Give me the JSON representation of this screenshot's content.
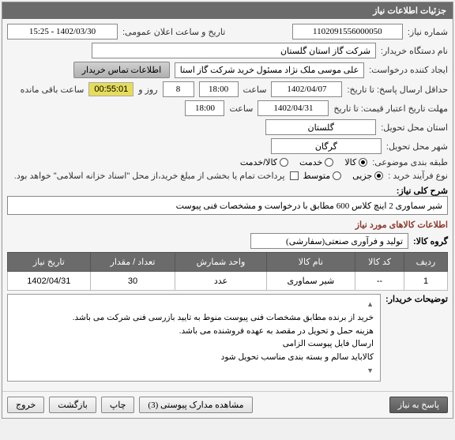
{
  "panel": {
    "title": "جزئیات اطلاعات نیاز"
  },
  "fields": {
    "req_no_label": "شماره نیاز:",
    "req_no": "1102091556000050",
    "announce_label": "تاریخ و ساعت اعلان عمومی:",
    "announce_dt": "1402/03/30 - 15:25",
    "buyer_org_label": "نام دستگاه خریدار:",
    "buyer_org": "شرکت گاز استان گلستان",
    "requester_label": "ایجاد کننده درخواست:",
    "requester": "علی موسی ملک نژاد مسئول خرید شرکت گاز استان گلستان",
    "contact_btn": "اطلاعات تماس خریدار",
    "reply_deadline_label": "حداقل ارسال پاسخ: تا تاریخ:",
    "reply_date": "1402/04/07",
    "time_lbl": "ساعت",
    "reply_time": "18:00",
    "and_lbl": "روز و",
    "hours_val": "8",
    "countdown": "00:55:01",
    "remaining_lbl": "ساعت باقی مانده",
    "price_valid_label": "مهلت تاریخ اعتبار قیمت: تا تاریخ",
    "price_date": "1402/04/31",
    "price_time": "18:00",
    "province_label": "استان محل تحویل:",
    "province": "گلستان",
    "city_label": "شهر محل تحویل:",
    "city": "گرگان",
    "topic_class_label": "طبقه بندی موضوعی:",
    "opt_goods": "کالا",
    "opt_service": "خدمت",
    "opt_goods_service": "کالا/خدمت",
    "purchase_type_label": "نوع فرآیند خرید :",
    "opt_partial": "جزیی",
    "opt_medium": "متوسط",
    "partial_note": "پرداخت تمام یا بخشی از مبلغ خرید،از محل \"اسناد خزانه اسلامی\" خواهد بود.",
    "desc_label": "شرح کلی نیاز:",
    "desc": "شیر سماوری 2 اینچ کلاس 600 مطابق با درخواست و مشخصات فنی پیوست",
    "goods_section": "اطلاعات کالاهای مورد نیاز",
    "goods_group_label": "گروه کالا:",
    "goods_group": "تولید و فرآوری صنعتی(سفارشی)"
  },
  "table": {
    "headers": [
      "ردیف",
      "کد کالا",
      "نام کالا",
      "واحد شمارش",
      "تعداد / مقدار",
      "تاریخ نیاز"
    ],
    "rows": [
      [
        "1",
        "--",
        "شیر سماوری",
        "عدد",
        "30",
        "1402/04/31"
      ]
    ]
  },
  "notes": {
    "label": "توضیحات خریدار:",
    "lines": [
      "خرید از برنده مطابق مشخصات فنی پیوست منوط به تایید بازرسی فنی شرکت می باشد.",
      "هزینه حمل و تحویل در مقصد به عهده فروشنده می باشد.",
      "ارسال فایل پیوست الزامی",
      "کالاباید سالم و بسته بندی مناسب تحویل شود"
    ]
  },
  "footer": {
    "reply": "پاسخ به نیاز",
    "attachments": "مشاهده مدارک پیوستی (3)",
    "print": "چاپ",
    "back": "بازگشت",
    "exit": "خروج"
  }
}
